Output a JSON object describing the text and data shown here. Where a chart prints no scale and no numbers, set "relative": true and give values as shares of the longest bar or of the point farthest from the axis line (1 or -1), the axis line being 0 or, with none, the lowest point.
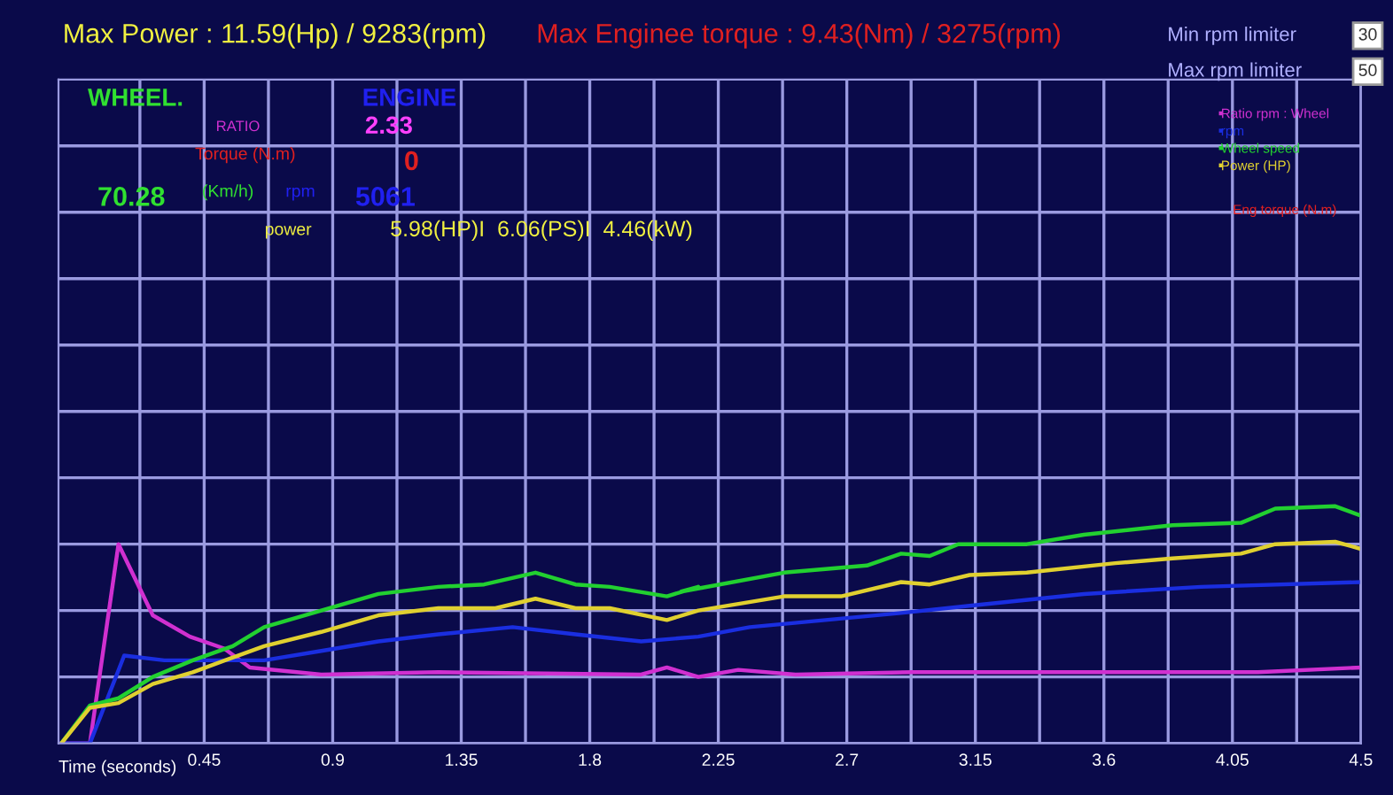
{
  "chart_data": {
    "type": "line",
    "relative": true,
    "title": "Max Power : 11.59(Hp) / 9283(rpm)",
    "subtitle": "Max Enginee torque : 9.43(Nm) / 3275(rpm)",
    "xlabel": "Time (seconds)",
    "xlim": [
      -0.06,
      4.5
    ],
    "xticks": [
      0.45,
      0.9,
      1.35,
      1.8,
      2.25,
      2.7,
      3.15,
      3.6,
      4.05,
      4.5
    ],
    "grid": true,
    "legend": "top right",
    "line_style": "solid",
    "marker": "none",
    "series": [
      {
        "name": "Ratio rpm : Wheel",
        "color": "#d030d0",
        "x": [
          -0.05,
          0.05,
          0.15,
          0.27,
          0.4,
          0.52,
          0.61,
          0.86,
          1.27,
          1.98,
          2.07,
          2.18,
          2.32,
          2.52,
          2.93,
          4.14,
          4.5
        ],
        "values": [
          0,
          0,
          0.84,
          0.54,
          0.45,
          0.4,
          0.32,
          0.29,
          0.3,
          0.29,
          0.32,
          0.28,
          0.31,
          0.29,
          0.3,
          0.3,
          0.32
        ]
      },
      {
        "name": "rpm",
        "color": "#1a2ee0",
        "x": [
          -0.05,
          0.05,
          0.17,
          0.31,
          0.66,
          0.86,
          1.06,
          1.27,
          1.53,
          1.75,
          1.98,
          2.18,
          2.36,
          2.89,
          3.13,
          3.53,
          3.94,
          4.5
        ],
        "values": [
          0,
          0,
          0.37,
          0.35,
          0.35,
          0.39,
          0.43,
          0.46,
          0.49,
          0.46,
          0.43,
          0.45,
          0.49,
          0.55,
          0.58,
          0.63,
          0.66,
          0.68
        ]
      },
      {
        "name": "Wheel speed",
        "color": "#22d030",
        "x": [
          -0.05,
          0.05,
          0.15,
          0.27,
          0.41,
          0.55,
          0.66,
          0.86,
          1.06,
          1.27,
          1.43,
          1.61,
          1.75,
          1.87,
          2.07,
          2.18,
          2.12,
          2.48,
          2.77,
          2.89,
          2.99,
          3.09,
          3.33,
          3.53,
          3.84,
          4.08,
          4.2,
          4.41,
          4.5
        ],
        "values": [
          0,
          0.16,
          0.19,
          0.28,
          0.35,
          0.41,
          0.49,
          0.56,
          0.63,
          0.66,
          0.67,
          0.72,
          0.67,
          0.66,
          0.62,
          0.66,
          0.64,
          0.72,
          0.75,
          0.8,
          0.79,
          0.84,
          0.84,
          0.88,
          0.92,
          0.93,
          0.99,
          1,
          0.96
        ]
      },
      {
        "name": "Power (HP)",
        "color": "#e0d030",
        "x": [
          -0.05,
          0.05,
          0.15,
          0.27,
          0.41,
          0.66,
          0.86,
          1.06,
          1.27,
          1.47,
          1.61,
          1.75,
          1.87,
          2.07,
          2.18,
          2.48,
          2.68,
          2.89,
          2.99,
          3.13,
          3.33,
          3.64,
          3.84,
          4.08,
          4.2,
          4.41,
          4.5
        ],
        "values": [
          0,
          0.15,
          0.17,
          0.25,
          0.3,
          0.41,
          0.47,
          0.54,
          0.57,
          0.57,
          0.61,
          0.57,
          0.57,
          0.52,
          0.56,
          0.62,
          0.62,
          0.68,
          0.67,
          0.71,
          0.72,
          0.76,
          0.78,
          0.8,
          0.84,
          0.85,
          0.82
        ]
      }
    ],
    "annotations": [
      "Min rpm limiter",
      "Max rpm limiter",
      "30",
      "50",
      "WHEEL.",
      "ENGINE",
      "RATIO",
      "2.33",
      "Torque (N.m)",
      "0",
      "70.28",
      "(Km/h)",
      "rpm",
      "5061",
      "power",
      "5.98(HP)I  6.06(PS)I  4.46(kW)",
      "Eng torque (N.m)"
    ]
  }
}
